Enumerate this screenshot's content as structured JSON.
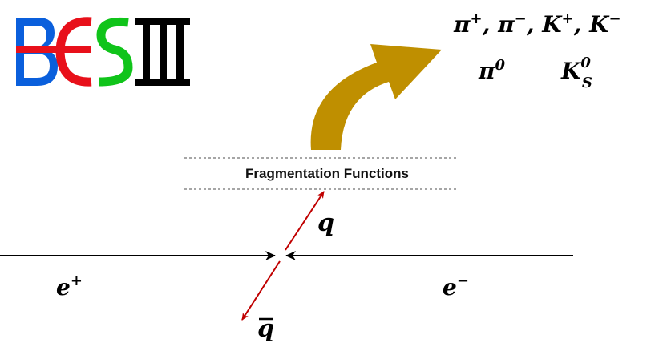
{
  "logo": {
    "text": "BESIII",
    "colors": {
      "B": "#0a5fdc",
      "E": "#e8101a",
      "S": "#10c41a",
      "III": "#000000"
    }
  },
  "final_states": {
    "line1": [
      "π",
      "+",
      "π",
      "−",
      "K",
      "+",
      "K",
      "−"
    ],
    "separator": ",",
    "pi0": {
      "base": "π",
      "sup": "0"
    },
    "ks0": {
      "base": "K",
      "sub": "S",
      "sup": "0"
    }
  },
  "fragmentation_label": "Fragmentation Functions",
  "labels": {
    "quark": "q",
    "antiquark": "q",
    "positron": {
      "base": "e",
      "sup": "+"
    },
    "electron": {
      "base": "e",
      "sup": "−"
    }
  },
  "colors": {
    "quark_arrows": "#c00000",
    "big_arrow": "#bf8f00",
    "dotted": "#a6a6a6",
    "beam": "#000000"
  }
}
